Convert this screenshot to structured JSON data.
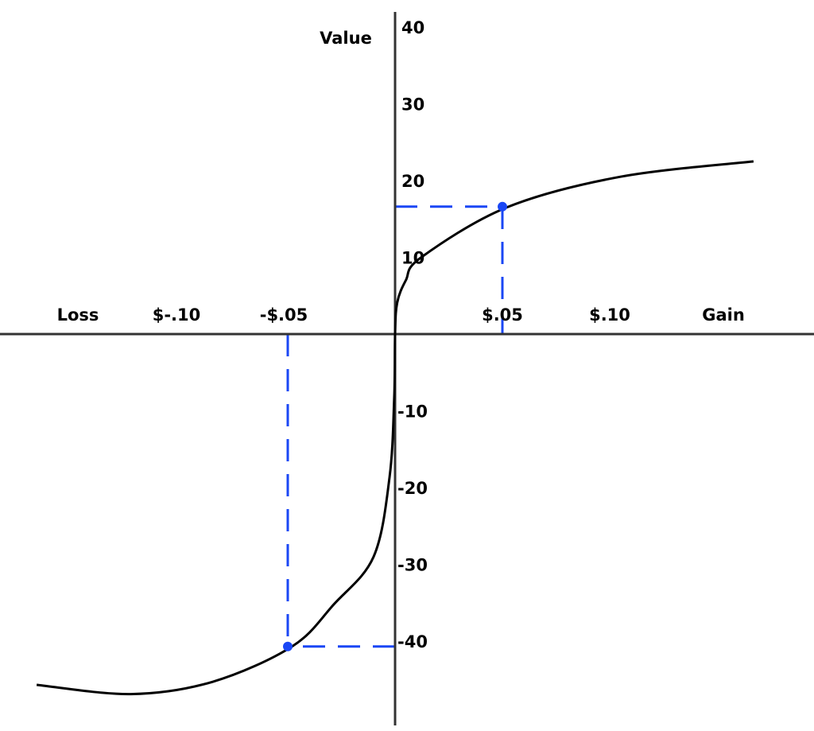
{
  "chart_data": {
    "type": "line",
    "title": "",
    "ylabel": "Value",
    "xlabel_left": "Loss",
    "xlabel_right": "Gain",
    "xlim": [
      -0.183,
      0.195
    ],
    "ylim": [
      -51,
      42
    ],
    "grid": false,
    "x_ticks": [
      {
        "value": -0.1,
        "label": "$-.10"
      },
      {
        "value": -0.05,
        "label": "-$.05"
      },
      {
        "value": 0.05,
        "label": "$.05"
      },
      {
        "value": 0.1,
        "label": "$.10"
      }
    ],
    "y_ticks": [
      {
        "value": 40,
        "label": "40"
      },
      {
        "value": 30,
        "label": "30"
      },
      {
        "value": 20,
        "label": "20"
      },
      {
        "value": 10,
        "label": "10"
      },
      {
        "value": -10,
        "label": "-10"
      },
      {
        "value": -20,
        "label": "-20"
      },
      {
        "value": -30,
        "label": "-30"
      },
      {
        "value": -40,
        "label": "-40"
      }
    ],
    "series": [
      {
        "color": "#000000",
        "points": [
          [
            -0.167,
            -45.7
          ],
          [
            -0.123,
            -46.9
          ],
          [
            -0.085,
            -45.3
          ],
          [
            -0.048,
            -40.7
          ],
          [
            -0.0285,
            -35.2
          ],
          [
            -0.01,
            -29
          ],
          [
            -0.0026,
            -18.7
          ],
          [
            -0.0004,
            -8.3
          ],
          [
            0,
            0
          ],
          [
            0.001,
            4.1
          ],
          [
            0.005,
            7
          ],
          [
            0.0122,
            10
          ],
          [
            0.052,
            16.5
          ],
          [
            0.105,
            20.5
          ],
          [
            0.167,
            22.5
          ]
        ]
      }
    ],
    "highlights": [
      {
        "x": 0.05,
        "y": 16.6,
        "color": "#1a47f5",
        "style": "dashed"
      },
      {
        "x": -0.05,
        "y": -40.7,
        "color": "#1a47f5",
        "style": "dashed"
      }
    ]
  }
}
